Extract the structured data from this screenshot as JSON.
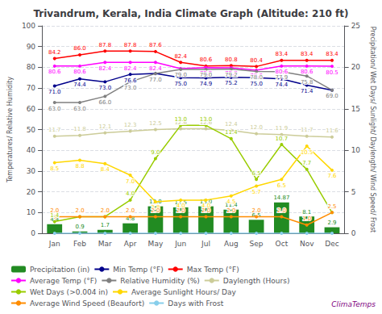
{
  "chart_data": {
    "type": "bar",
    "title": "Trivandrum, Kerala, India Climate Graph (Altitude: 210 ft)",
    "categories": [
      "Jan",
      "Feb",
      "Mar",
      "Apr",
      "May",
      "Jun",
      "Jul",
      "Aug",
      "Sep",
      "Oct",
      "Nov",
      "Dec"
    ],
    "y_label": "Temperatures/ Relative Humidity",
    "y2_label": "Precipitation/ Wet Days/ Sunlight/ Daylength/ Wind Speed/ Frost",
    "ylim": [
      0,
      100
    ],
    "yticks": [
      0,
      10,
      20,
      30,
      40,
      50,
      60,
      70,
      80,
      90,
      100
    ],
    "y2lim": [
      0,
      25
    ],
    "y2ticks": [
      0,
      5,
      10,
      15,
      20,
      25
    ],
    "grid": true,
    "legend": "bottom",
    "annotations": [
      {
        "text": "ClimaTemps",
        "color": "#800080"
      }
    ],
    "series": [
      {
        "name": "Precipitation (in)",
        "type": "bar",
        "color": "#228B22",
        "data_labels": true,
        "values": [
          4.4,
          0.9,
          1.7,
          4.8,
          13.0,
          12.5,
          13.0,
          11.4,
          6.5,
          14.87,
          8.1,
          2.9
        ],
        "value_labels": [
          "4.4",
          "0.9",
          "1.7",
          "4.8",
          "13.0",
          "12.5",
          "13.0",
          "11.4",
          "6.5",
          "14.87",
          "8.1",
          "2.9"
        ]
      },
      {
        "name": "Min Temp (°F)",
        "type": "line",
        "color": "#00008B",
        "marker": "circle",
        "data_labels": true,
        "values": [
          71.0,
          74.4,
          73.0,
          76.6,
          77.0,
          75.0,
          74.9,
          75.2,
          75.0,
          74.4,
          71.4,
          69.0
        ],
        "value_labels": [
          "71.0",
          "74.4",
          "73.0",
          "76.6",
          "77.0",
          "75.0",
          "74.9",
          "75.2",
          "75.0",
          "74.4",
          "71.4",
          "69.0"
        ]
      },
      {
        "name": "Max Temp (°F)",
        "type": "line",
        "color": "#FF0000",
        "marker": "circle",
        "data_labels": true,
        "values": [
          84.2,
          86.0,
          87.8,
          87.8,
          87.6,
          82.4,
          80.6,
          80.8,
          80.4,
          83.4,
          83.4,
          83.4
        ],
        "value_labels": [
          "84.2",
          "86.0",
          "87.8",
          "87.8",
          "87.6",
          "82.4",
          "80.6",
          "80.8",
          "80.4",
          "83.4",
          "83.4",
          "83.4"
        ]
      },
      {
        "name": "Average Temp (°F)",
        "type": "line",
        "color": "#FF00FF",
        "marker": "circle",
        "data_labels": true,
        "values": [
          80.6,
          80.6,
          82.4,
          82.4,
          82.4,
          79.4,
          79.9,
          79.8,
          78.6,
          80.6,
          80.6,
          80.5
        ],
        "value_labels": [
          "80.6",
          "80.6",
          "82.4",
          "82.4",
          "82.4",
          "79.4",
          "79.9",
          "79.8",
          "78.6",
          "80.6",
          "80.6",
          "80.5"
        ]
      },
      {
        "name": "Relative Humidity (%)",
        "type": "line",
        "color": "#808080",
        "marker": "circle",
        "data_labels": true,
        "values": [
          63.0,
          63.0,
          66.0,
          73.0,
          77.0,
          79.0,
          79.0,
          79.2,
          78.0,
          77.9,
          75.8,
          69.0
        ],
        "value_labels": [
          "63.0",
          "63.0",
          "66.0",
          "73.0",
          "77.0",
          "79.0",
          "79.0",
          "79.2",
          "78.0",
          "77.9",
          "75.8",
          "69.0"
        ]
      },
      {
        "name": "Daylength (Hours)",
        "type": "line",
        "axis": "y2",
        "color": "#CCCC99",
        "marker": "circle",
        "data_labels": true,
        "values": [
          11.7,
          11.8,
          12.1,
          12.3,
          12.5,
          12.6,
          12.6,
          12.4,
          12.0,
          11.9,
          11.7,
          11.6
        ],
        "value_labels": [
          "11.7",
          "11.8",
          "12.1",
          "12.3",
          "12.5",
          "12.6",
          "12.6",
          "12.4",
          "12.0",
          "11.9",
          "11.7",
          "11.6"
        ]
      },
      {
        "name": "Wet Days (>0.004 in)",
        "type": "line",
        "axis": "y2",
        "color": "#99CC00",
        "marker": "circle",
        "data_labels": true,
        "values": [
          1.4,
          2.0,
          2.0,
          4.0,
          9.0,
          13.0,
          13.0,
          11.4,
          6.5,
          10.7,
          7.7,
          2.5
        ],
        "value_labels": [
          "1.4",
          "2.0",
          "2.0",
          "4.0",
          "9.0",
          "13.0",
          "13.0",
          "11.4",
          "6.5",
          "10.7",
          "7.7",
          "2.5"
        ]
      },
      {
        "name": "Average Sunlight Hours/ Day",
        "type": "line",
        "axis": "y2",
        "color": "#FFD700",
        "marker": "circle",
        "data_labels": true,
        "values": [
          8.5,
          8.8,
          8.4,
          7.0,
          3.8,
          4.0,
          4.0,
          4.5,
          5.7,
          6.5,
          10.5,
          7.6
        ],
        "value_labels": [
          "8.5",
          "8.8",
          "8.4",
          "7.0",
          "3.8",
          "4.0",
          "4.0",
          "4.5",
          "5.7",
          "6.5",
          "10.5",
          "7.6"
        ]
      },
      {
        "name": "Average Wind Speed (Beaufort)",
        "type": "line",
        "axis": "y2",
        "color": "#FF8C00",
        "marker": "circle",
        "data_labels": true,
        "values": [
          2.0,
          2.0,
          2.0,
          2.0,
          2.0,
          2.0,
          2.0,
          2.0,
          2.0,
          2.0,
          1.0,
          2.5
        ],
        "value_labels": [
          "2.0",
          "2.0",
          "2.0",
          "2.0",
          "2.0",
          "2.0",
          "2.0",
          "2.0",
          "2.0",
          "2.0",
          "1.0",
          "2.5"
        ]
      },
      {
        "name": "Days with Frost",
        "type": "line",
        "axis": "y2",
        "color": "#87CEEB",
        "marker": "circle",
        "data_labels": false,
        "values": [
          0.0,
          0.0,
          0.0,
          0.0,
          0.0,
          0.0,
          0.0,
          0.0,
          0.0,
          0.0,
          0.0,
          0.0
        ]
      }
    ]
  }
}
